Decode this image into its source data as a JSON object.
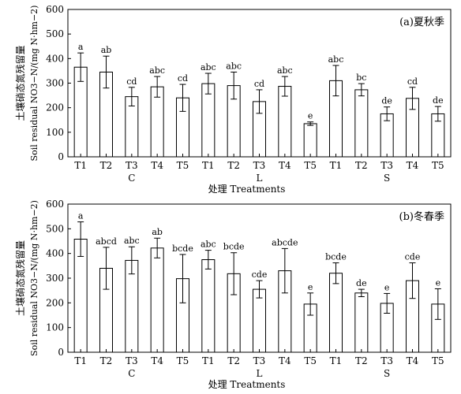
{
  "chart_data": [
    {
      "type": "bar",
      "panel_label": "(a)夏秋季",
      "ylabel_zh": "土壤硝态氮残留量",
      "ylabel_en": "Soil residual NO3−N/(mg N·hm−2)",
      "xlabel": "处理 Treatments",
      "ylim": [
        0,
        600
      ],
      "yticks": [
        0,
        100,
        200,
        300,
        400,
        500,
        600
      ],
      "groups": [
        {
          "name": "C",
          "categories": [
            "T1",
            "T2",
            "T3",
            "T4",
            "T5"
          ]
        },
        {
          "name": "L",
          "categories": [
            "T1",
            "T2",
            "T3",
            "T4",
            "T5"
          ]
        },
        {
          "name": "S",
          "categories": [
            "T1",
            "T2",
            "T3",
            "T4",
            "T5"
          ]
        }
      ],
      "values": [
        365,
        345,
        245,
        285,
        240,
        298,
        290,
        225,
        287,
        135,
        310,
        273,
        175,
        238,
        175
      ],
      "errors": [
        58,
        65,
        38,
        42,
        55,
        42,
        55,
        48,
        40,
        7,
        62,
        25,
        28,
        45,
        30
      ],
      "letters": [
        "a",
        "ab",
        "cd",
        "abc",
        "cd",
        "abc",
        "abc",
        "cd",
        "abc",
        "e",
        "abc",
        "bc",
        "de",
        "cd",
        "de"
      ]
    },
    {
      "type": "bar",
      "panel_label": "(b)冬春季",
      "ylabel_zh": "土壤硝态氮残留量",
      "ylabel_en": "Soil residual NO3−N/(mg N·hm−2)",
      "xlabel": "处理 Treatments",
      "ylim": [
        0,
        600
      ],
      "yticks": [
        0,
        100,
        200,
        300,
        400,
        500,
        600
      ],
      "groups": [
        {
          "name": "C",
          "categories": [
            "T1",
            "T2",
            "T3",
            "T4",
            "T5"
          ]
        },
        {
          "name": "L",
          "categories": [
            "T1",
            "T2",
            "T3",
            "T4",
            "T5"
          ]
        },
        {
          "name": "S",
          "categories": [
            "T1",
            "T2",
            "T3",
            "T4",
            "T5"
          ]
        }
      ],
      "values": [
        458,
        340,
        372,
        422,
        298,
        375,
        318,
        255,
        330,
        195,
        320,
        240,
        198,
        290,
        195
      ],
      "errors": [
        70,
        85,
        55,
        40,
        98,
        38,
        85,
        35,
        90,
        45,
        42,
        15,
        40,
        72,
        62
      ],
      "letters": [
        "a",
        "abcd",
        "abc",
        "ab",
        "bcde",
        "abc",
        "bcde",
        "cde",
        "abcde",
        "e",
        "bcde",
        "de",
        "e",
        "cde",
        "e"
      ]
    }
  ]
}
